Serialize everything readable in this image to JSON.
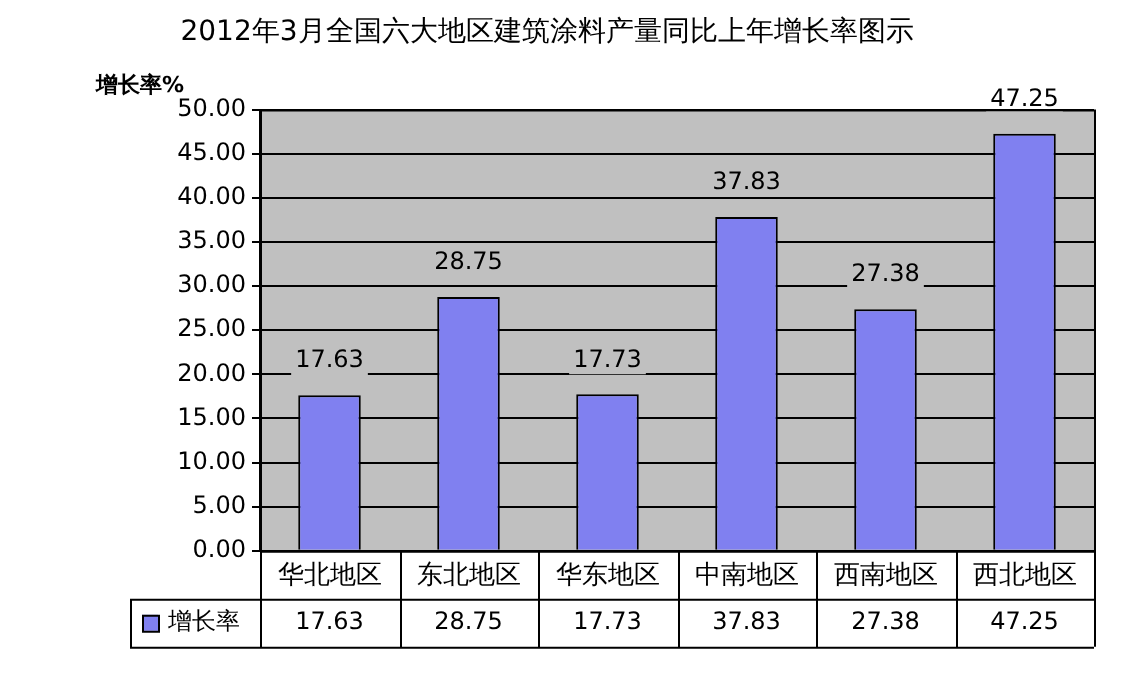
{
  "chart_data": {
    "type": "bar",
    "title": "2012年3月全国六大地区建筑涂料产量同比上年增长率图示",
    "ylabel": "增长率%",
    "categories": [
      "华北地区",
      "东北地区",
      "华东地区",
      "中南地区",
      "西南地区",
      "西北地区"
    ],
    "series": [
      {
        "name": "增长率",
        "color": "#8080f0",
        "values": [
          17.63,
          28.75,
          17.73,
          37.83,
          27.38,
          47.25
        ]
      }
    ],
    "ylim": [
      0,
      50
    ],
    "yticks": [
      {
        "value": 0,
        "label": "0.00"
      },
      {
        "value": 5,
        "label": "5.00"
      },
      {
        "value": 10,
        "label": "10.00"
      },
      {
        "value": 15,
        "label": "15.00"
      },
      {
        "value": 20,
        "label": "20.00"
      },
      {
        "value": 25,
        "label": "25.00"
      },
      {
        "value": 30,
        "label": "30.00"
      },
      {
        "value": 35,
        "label": "35.00"
      },
      {
        "value": 40,
        "label": "40.00"
      },
      {
        "value": 45,
        "label": "45.00"
      },
      {
        "value": 50,
        "label": "50.00"
      }
    ],
    "annotations": [
      "17.63",
      "28.75",
      "17.73",
      "37.83",
      "27.38",
      "47.25"
    ],
    "grid": "y",
    "legend": "bottom left",
    "data_labels": true
  }
}
